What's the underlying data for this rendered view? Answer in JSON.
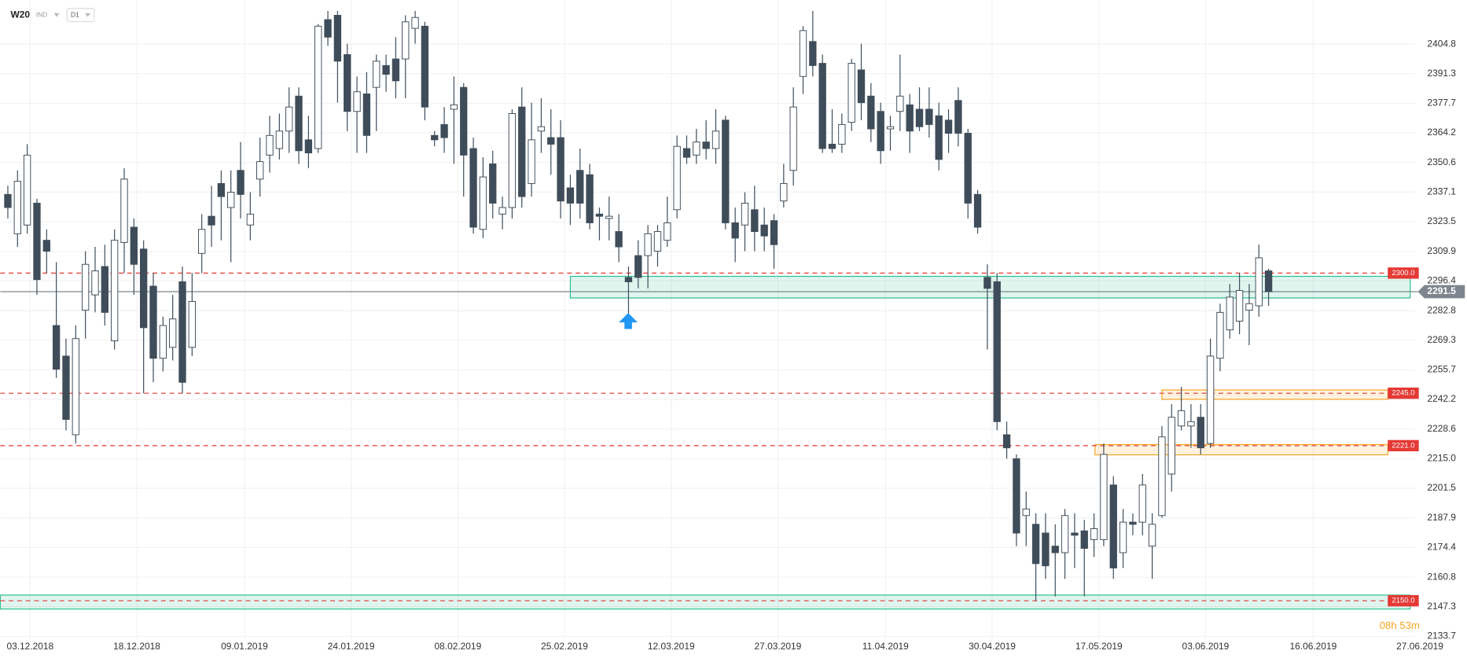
{
  "header": {
    "symbol": "W20",
    "market": "IND",
    "timeframe": "D1"
  },
  "chart_data": {
    "type": "candlestick",
    "up_color": "#ffffff",
    "down_color": "#3f4d5a",
    "outline_color": "#3f4d5a",
    "open": [
      2336,
      2318,
      2322,
      2332,
      2315,
      2276,
      2262,
      2226,
      2283,
      2290,
      2303,
      2269,
      2314,
      2321,
      2311,
      2294,
      2261,
      2266,
      2296,
      2266,
      2309,
      2326,
      2341,
      2330,
      2347,
      2322,
      2343,
      2354,
      2357,
      2365,
      2381,
      2361,
      2357,
      2416,
      2418,
      2400,
      2374,
      2382,
      2385,
      2395,
      2398,
      2398,
      2412,
      2413,
      2363,
      2368,
      2375,
      2385,
      2357,
      2320,
      2350,
      2327,
      2330,
      2376,
      2341,
      2365,
      2362,
      2362,
      2339,
      2347,
      2345,
      2327,
      2325,
      2319,
      2298,
      2308,
      2308,
      2310,
      2315,
      2329,
      2357,
      2354,
      2360,
      2357,
      2370,
      2323,
      2322,
      2329,
      2322,
      2324,
      2333,
      2347,
      2390,
      2406,
      2396,
      2359,
      2359,
      2369,
      2393,
      2381,
      2374,
      2366,
      2374,
      2377,
      2375,
      2375,
      2372,
      2370,
      2379,
      2364,
      2336,
      2298,
      2296,
      2226,
      2215,
      2189,
      2185,
      2181,
      2175,
      2172,
      2181,
      2182,
      2178,
      2178,
      2203,
      2172,
      2186,
      2186,
      2175,
      2189,
      2208,
      2230,
      2230,
      2234,
      2222,
      2261,
      2274,
      2278,
      2283,
      2285,
      2301
    ],
    "high": [
      2340,
      2347,
      2359,
      2334,
      2320,
      2305,
      2270,
      2276,
      2310,
      2312,
      2313,
      2320,
      2348,
      2325,
      2315,
      2300,
      2280,
      2290,
      2303,
      2300,
      2327,
      2340,
      2347,
      2347,
      2360,
      2337,
      2362,
      2372,
      2373,
      2385,
      2385,
      2372,
      2414,
      2420,
      2420,
      2405,
      2390,
      2392,
      2400,
      2400,
      2408,
      2418,
      2420,
      2415,
      2365,
      2376,
      2390,
      2387,
      2362,
      2353,
      2356,
      2335,
      2375,
      2385,
      2378,
      2380,
      2375,
      2370,
      2345,
      2357,
      2350,
      2330,
      2335,
      2327,
      2303,
      2315,
      2322,
      2322,
      2335,
      2363,
      2363,
      2366,
      2370,
      2375,
      2372,
      2330,
      2337,
      2340,
      2330,
      2327,
      2350,
      2385,
      2413,
      2420,
      2400,
      2375,
      2373,
      2398,
      2405,
      2387,
      2378,
      2372,
      2400,
      2382,
      2385,
      2385,
      2378,
      2375,
      2385,
      2366,
      2338,
      2304,
      2300,
      2232,
      2217,
      2200,
      2190,
      2190,
      2185,
      2192,
      2190,
      2187,
      2190,
      2222,
      2207,
      2192,
      2190,
      2208,
      2190,
      2230,
      2240,
      2248,
      2240,
      2240,
      2270,
      2286,
      2295,
      2300,
      2295,
      2313,
      2302
    ],
    "low": [
      2325,
      2312,
      2318,
      2290,
      2300,
      2252,
      2228,
      2222,
      2270,
      2282,
      2276,
      2265,
      2300,
      2290,
      2245,
      2250,
      2255,
      2260,
      2245,
      2262,
      2300,
      2312,
      2315,
      2305,
      2325,
      2315,
      2335,
      2346,
      2352,
      2355,
      2350,
      2348,
      2355,
      2404,
      2378,
      2365,
      2355,
      2355,
      2365,
      2383,
      2380,
      2380,
      2405,
      2370,
      2358,
      2355,
      2350,
      2335,
      2318,
      2316,
      2325,
      2320,
      2325,
      2330,
      2335,
      2355,
      2345,
      2325,
      2322,
      2325,
      2320,
      2315,
      2315,
      2305,
      2276,
      2293,
      2293,
      2303,
      2312,
      2325,
      2350,
      2350,
      2352,
      2350,
      2320,
      2305,
      2310,
      2310,
      2310,
      2302,
      2330,
      2340,
      2382,
      2390,
      2355,
      2355,
      2355,
      2365,
      2370,
      2360,
      2350,
      2356,
      2365,
      2355,
      2365,
      2362,
      2347,
      2355,
      2358,
      2325,
      2318,
      2265,
      2228,
      2215,
      2175,
      2175,
      2150,
      2160,
      2152,
      2160,
      2165,
      2152,
      2170,
      2175,
      2160,
      2165,
      2180,
      2180,
      2160,
      2188,
      2200,
      2228,
      2220,
      2217,
      2220,
      2255,
      2270,
      2272,
      2267,
      2280,
      2285
    ],
    "close": [
      2330,
      2342,
      2354,
      2297,
      2310,
      2256,
      2233,
      2270,
      2304,
      2301,
      2282,
      2315,
      2343,
      2304,
      2275,
      2261,
      2276,
      2279,
      2250,
      2287,
      2320,
      2322,
      2335,
      2337,
      2336,
      2327,
      2351,
      2363,
      2365,
      2376,
      2356,
      2355,
      2413,
      2408,
      2397,
      2374,
      2383,
      2363,
      2397,
      2391,
      2388,
      2415,
      2417,
      2376,
      2361,
      2362,
      2377,
      2354,
      2321,
      2344,
      2332,
      2330,
      2373,
      2335,
      2361,
      2367,
      2359,
      2333,
      2332,
      2332,
      2323,
      2326,
      2326,
      2312,
      2296,
      2298,
      2318,
      2319,
      2323,
      2358,
      2353,
      2360,
      2357,
      2365,
      2323,
      2316,
      2332,
      2319,
      2317,
      2313,
      2341,
      2376,
      2411,
      2395,
      2357,
      2357,
      2368,
      2396,
      2378,
      2366,
      2356,
      2367,
      2381,
      2365,
      2367,
      2368,
      2352,
      2364,
      2364,
      2332,
      2321,
      2293,
      2232,
      2220,
      2181,
      2192,
      2167,
      2166,
      2172,
      2189,
      2180,
      2174,
      2183,
      2217,
      2165,
      2186,
      2185,
      2203,
      2185,
      2225,
      2234,
      2237,
      2232,
      2220,
      2262,
      2282,
      2289,
      2292,
      2286,
      2307,
      2291.5
    ],
    "xlim": [
      -0.78,
      145.1
    ],
    "xticks": [
      {
        "value": 2.3,
        "label": "03.12.2018"
      },
      {
        "value": 13.3,
        "label": "18.12.2018"
      },
      {
        "value": 24.4,
        "label": "09.01.2019"
      },
      {
        "value": 35.4,
        "label": "24.01.2019"
      },
      {
        "value": 46.4,
        "label": "08.02.2019"
      },
      {
        "value": 57.4,
        "label": "25.02.2019"
      },
      {
        "value": 68.4,
        "label": "12.03.2019"
      },
      {
        "value": 79.4,
        "label": "27.03.2019"
      },
      {
        "value": 90.5,
        "label": "11.04.2019"
      },
      {
        "value": 101.5,
        "label": "30.04.2019"
      },
      {
        "value": 112.5,
        "label": "17.05.2019"
      },
      {
        "value": 123.5,
        "label": "03.06.2019"
      },
      {
        "value": 134.6,
        "label": "16.06.2019"
      },
      {
        "value": 145.6,
        "label": "27.06.2019"
      }
    ],
    "ylim": [
      2132.4,
      2425.0
    ],
    "yticks": [
      2404.8,
      2391.3,
      2377.7,
      2364.2,
      2350.6,
      2337.1,
      2323.5,
      2309.9,
      2296.4,
      2282.8,
      2269.3,
      2255.7,
      2242.2,
      2228.6,
      {
        "value": 2215,
        "label": "2215.0"
      },
      2201.5,
      2187.9,
      2174.4,
      2160.8,
      2147.3,
      2133.7
    ],
    "grid": true,
    "levels": [
      {
        "value": 2300,
        "label": "2300.0",
        "color": "#e53935"
      },
      {
        "value": 2245,
        "label": "2245.0",
        "color": "#e53935"
      },
      {
        "value": 2221,
        "label": "2221.0",
        "color": "#e53935"
      },
      {
        "value": 2150,
        "label": "2150.0",
        "color": "#e53935"
      }
    ],
    "last_price": 2291.5,
    "last_price_color": "#7d868e",
    "zones": [
      {
        "x": [
          58.0,
          144.6
        ],
        "y": [
          2288.6,
          2298.5
        ],
        "color": "#2bbf8f"
      },
      {
        "x": [
          -0.78,
          144.6
        ],
        "y": [
          2146.2,
          2152.6
        ],
        "color": "#2bbf8f"
      },
      {
        "x": [
          119.0,
          142.3
        ],
        "y": [
          2242.2,
          2246.5
        ],
        "color": "#f5a623"
      },
      {
        "x": [
          112.1,
          142.3
        ],
        "y": [
          2216.8,
          2221.5
        ],
        "color": "#f5a623"
      }
    ],
    "countdown": "08h 53m"
  }
}
